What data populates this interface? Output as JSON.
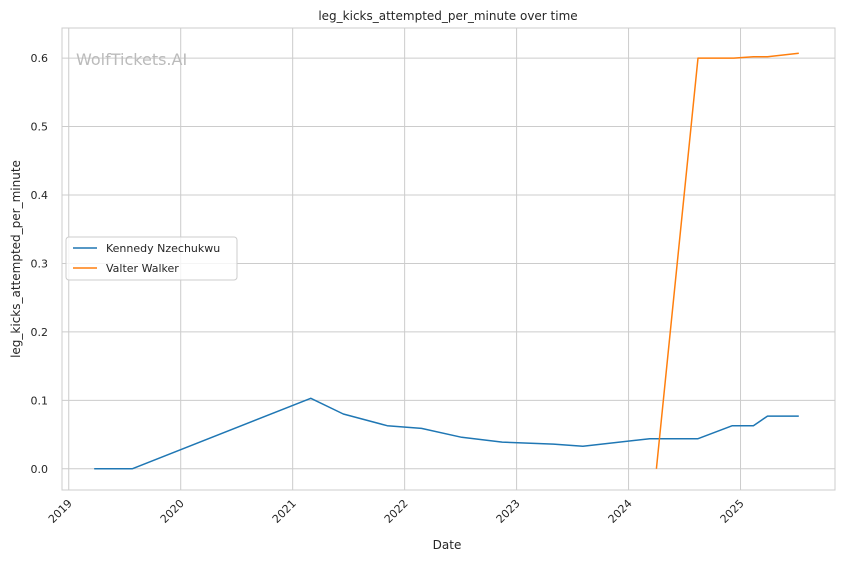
{
  "chart_data": {
    "type": "line",
    "title": "leg_kicks_attempted_per_minute over time",
    "xlabel": "Date",
    "ylabel": "leg_kicks_attempted_per_minute",
    "watermark": "WolfTickets.AI",
    "xlim": [
      "2018-12-10",
      "2025-11-05"
    ],
    "ylim": [
      -0.031,
      0.644
    ],
    "x_ticks": [
      "2019",
      "2020",
      "2021",
      "2022",
      "2023",
      "2024",
      "2025"
    ],
    "y_ticks": [
      "0.0",
      "0.1",
      "0.2",
      "0.3",
      "0.4",
      "0.5",
      "0.6"
    ],
    "grid": true,
    "legend_position": "center-left",
    "series": [
      {
        "name": "Kennedy Nzechukwu",
        "color": "#1f77b4",
        "x": [
          "2019-03-25",
          "2019-07-27",
          "2021-03-01",
          "2021-06-15",
          "2021-11-05",
          "2022-02-25",
          "2022-07-06",
          "2022-11-15",
          "2023-05-01",
          "2023-08-05",
          "2024-03-10",
          "2024-08-15",
          "2024-12-05",
          "2025-02-12",
          "2025-03-30",
          "2025-07-10"
        ],
        "y": [
          0.0,
          0.0,
          0.103,
          0.08,
          0.063,
          0.059,
          0.046,
          0.039,
          0.036,
          0.033,
          0.044,
          0.044,
          0.063,
          0.063,
          0.077,
          0.077
        ]
      },
      {
        "name": "Valter Walker",
        "color": "#ff7f0e",
        "x": [
          "2024-04-01",
          "2024-08-15",
          "2024-12-10",
          "2025-02-12",
          "2025-03-30",
          "2025-07-10"
        ],
        "y": [
          0.0,
          0.6,
          0.6,
          0.602,
          0.602,
          0.607
        ]
      }
    ]
  }
}
